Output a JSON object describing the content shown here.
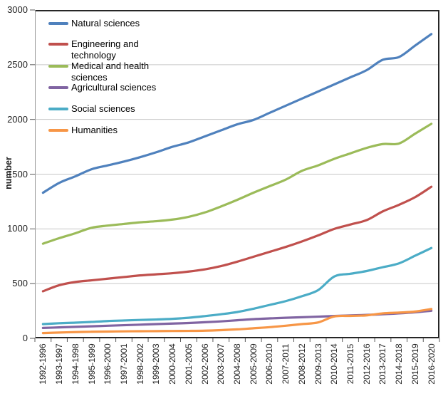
{
  "chart_data": {
    "type": "line",
    "title": "",
    "xlabel": "",
    "ylabel": "number",
    "ylim": [
      0,
      3000
    ],
    "y_ticks": [
      0,
      500,
      1000,
      1500,
      2000,
      2500,
      3000
    ],
    "grid": true,
    "line_style": "smoothed",
    "legend_position": "top-left-inside",
    "categories": [
      "1992-1996",
      "1993-1997",
      "1994-1998",
      "1995-1999",
      "1996-2000",
      "1997-2001",
      "1998-2002",
      "1999-2003",
      "2000-2004",
      "2001-2005",
      "2002-2006",
      "2003-2007",
      "2004-2008",
      "2005-2009",
      "2006-2010",
      "2007-2011",
      "2008-2012",
      "2009-2013",
      "2010-2014",
      "2011-2015",
      "2012-2016",
      "2013-2017",
      "2014-2018",
      "2015-2019",
      "2016-2020"
    ],
    "series": [
      {
        "name": "Natural sciences",
        "color": "#4F81BD",
        "values": [
          1330,
          1420,
          1480,
          1545,
          1580,
          1615,
          1655,
          1700,
          1750,
          1790,
          1845,
          1900,
          1955,
          1995,
          2060,
          2125,
          2190,
          2255,
          2320,
          2385,
          2450,
          2545,
          2570,
          2675,
          2780
        ]
      },
      {
        "name": "Engineering and technology",
        "color": "#C0504D",
        "values": [
          430,
          485,
          515,
          530,
          545,
          560,
          575,
          585,
          595,
          610,
          630,
          660,
          700,
          745,
          790,
          835,
          885,
          940,
          1000,
          1040,
          1080,
          1160,
          1220,
          1290,
          1385
        ]
      },
      {
        "name": "Medical and health sciences",
        "color": "#9BBB59",
        "values": [
          865,
          915,
          960,
          1010,
          1030,
          1045,
          1060,
          1070,
          1085,
          1110,
          1150,
          1205,
          1265,
          1330,
          1390,
          1450,
          1530,
          1580,
          1640,
          1690,
          1740,
          1775,
          1780,
          1870,
          1960
        ]
      },
      {
        "name": "Agricultural sciences",
        "color": "#8064A2",
        "values": [
          95,
          100,
          105,
          110,
          115,
          120,
          125,
          130,
          135,
          140,
          147,
          155,
          165,
          175,
          182,
          188,
          193,
          198,
          204,
          209,
          214,
          220,
          228,
          238,
          252
        ]
      },
      {
        "name": "Social sciences",
        "color": "#4BACC6",
        "values": [
          130,
          138,
          143,
          150,
          158,
          163,
          168,
          172,
          178,
          188,
          203,
          220,
          240,
          270,
          305,
          340,
          385,
          440,
          565,
          590,
          615,
          650,
          685,
          755,
          825
        ]
      },
      {
        "name": "Humanities",
        "color": "#F79646",
        "values": [
          48,
          53,
          57,
          60,
          62,
          64,
          65,
          66,
          67,
          68,
          70,
          75,
          82,
          92,
          102,
          115,
          130,
          145,
          200,
          205,
          210,
          228,
          235,
          245,
          268
        ]
      }
    ],
    "style": {
      "gridline_color": "#C6C6C6",
      "border_color": "#262626",
      "left_axis_color": "#9A9A9A",
      "tick_color": "#595959",
      "line_width": 3.2
    },
    "legend_item_tops": [
      25,
      54,
      85,
      115,
      145,
      175
    ]
  }
}
